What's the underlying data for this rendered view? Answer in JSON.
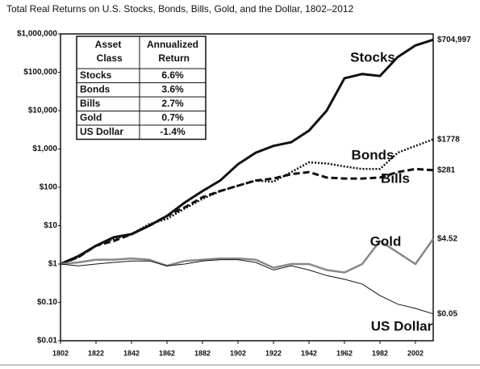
{
  "chart_data": {
    "type": "line",
    "title": "Total Real Returns on U.S. Stocks, Bonds, Bills, Gold, and the Dollar, 1802–2012",
    "log_y": true,
    "x": [
      1802,
      1812,
      1822,
      1832,
      1842,
      1852,
      1862,
      1872,
      1882,
      1892,
      1902,
      1912,
      1922,
      1932,
      1942,
      1952,
      1962,
      1972,
      1982,
      1992,
      2002,
      2012
    ],
    "xlim": [
      1802,
      2012
    ],
    "xticks": [
      1802,
      1822,
      1842,
      1862,
      1882,
      1902,
      1922,
      1942,
      1962,
      1982,
      2002
    ],
    "ylim": [
      0.01,
      1000000
    ],
    "yticks": [
      {
        "value": 0.01,
        "label": "$0.01"
      },
      {
        "value": 0.1,
        "label": "$0.10"
      },
      {
        "value": 1,
        "label": "$1"
      },
      {
        "value": 10,
        "label": "$10"
      },
      {
        "value": 100,
        "label": "$100"
      },
      {
        "value": 1000,
        "label": "$1,000"
      },
      {
        "value": 10000,
        "label": "$10,000"
      },
      {
        "value": 100000,
        "label": "$100,000"
      },
      {
        "value": 1000000,
        "label": "$1,000,000"
      }
    ],
    "series": [
      {
        "name": "Stocks",
        "color": "#111111",
        "style": "solid",
        "width": 3,
        "end_label": "$704,997",
        "values": [
          1,
          1.6,
          3,
          5,
          6,
          10,
          18,
          40,
          80,
          150,
          400,
          800,
          1200,
          1500,
          3000,
          10000,
          70000,
          90000,
          80000,
          250000,
          500000,
          704997
        ]
      },
      {
        "name": "Bonds",
        "color": "#111111",
        "style": "dotted",
        "width": 2.5,
        "end_label": "$1778",
        "values": [
          1,
          1.5,
          3,
          4.5,
          6,
          11,
          15,
          28,
          50,
          80,
          110,
          150,
          140,
          250,
          450,
          420,
          350,
          300,
          300,
          800,
          1200,
          1778
        ]
      },
      {
        "name": "Bills",
        "color": "#111111",
        "style": "dashed",
        "width": 3,
        "end_label": "$281",
        "values": [
          1,
          1.5,
          3,
          4,
          6,
          10,
          18,
          30,
          55,
          80,
          110,
          150,
          170,
          220,
          250,
          180,
          170,
          170,
          180,
          250,
          300,
          281
        ]
      },
      {
        "name": "Gold",
        "color": "#888888",
        "style": "solid",
        "width": 2.5,
        "end_label": "$4.52",
        "values": [
          1,
          1.1,
          1.3,
          1.3,
          1.4,
          1.3,
          0.9,
          1.2,
          1.3,
          1.4,
          1.4,
          1.3,
          0.8,
          1.0,
          1.0,
          0.7,
          0.6,
          1.0,
          4,
          2,
          1.0,
          4.52
        ]
      },
      {
        "name": "US Dollar",
        "color": "#111111",
        "style": "solid",
        "width": 1,
        "end_label": "$0.05",
        "values": [
          1,
          0.9,
          1.0,
          1.1,
          1.2,
          1.2,
          0.9,
          1.0,
          1.2,
          1.3,
          1.3,
          1.1,
          0.7,
          0.9,
          0.7,
          0.5,
          0.4,
          0.3,
          0.15,
          0.09,
          0.07,
          0.05
        ]
      }
    ],
    "table": {
      "headers": [
        "Asset Class",
        "Annualized Return"
      ],
      "rows": [
        [
          "Stocks",
          "6.6%"
        ],
        [
          "Bonds",
          "3.6%"
        ],
        [
          "Bills",
          "2.7%"
        ],
        [
          "Gold",
          "0.7%"
        ],
        [
          "US Dollar",
          "-1.4%"
        ]
      ]
    }
  }
}
